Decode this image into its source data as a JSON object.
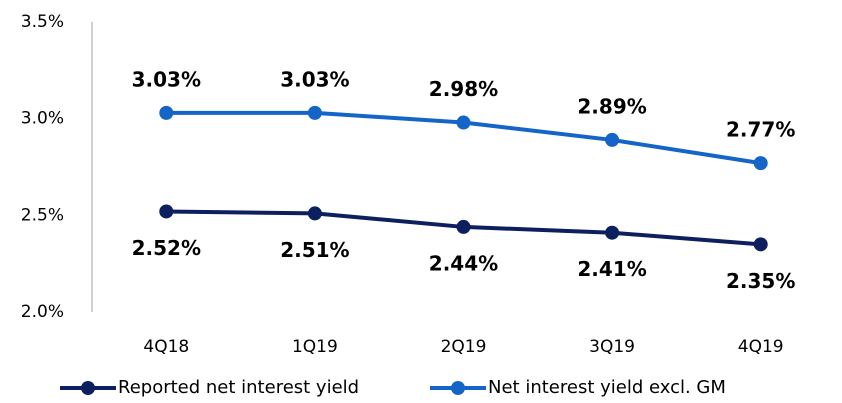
{
  "chart_data": {
    "type": "line",
    "categories": [
      "4Q18",
      "1Q19",
      "2Q19",
      "3Q19",
      "4Q19"
    ],
    "series": [
      {
        "name": "Reported net interest yield",
        "color": "#0c1f5e",
        "values": [
          2.52,
          2.51,
          2.44,
          2.41,
          2.35
        ],
        "value_labels": [
          "2.52%",
          "2.51%",
          "2.44%",
          "2.41%",
          "2.35%"
        ]
      },
      {
        "name": "Net interest yield excl. GM",
        "color": "#1565c8",
        "values": [
          3.03,
          3.03,
          2.98,
          2.89,
          2.77
        ],
        "value_labels": [
          "3.03%",
          "3.03%",
          "2.98%",
          "2.89%",
          "2.77%"
        ]
      }
    ],
    "ylim": [
      2.0,
      3.5
    ],
    "yticks": [
      {
        "value": 2.0,
        "label": "2.0%"
      },
      {
        "value": 2.5,
        "label": "2.5%"
      },
      {
        "value": 3.0,
        "label": "3.0%"
      },
      {
        "value": 3.5,
        "label": "3.5%"
      }
    ],
    "grid": false,
    "legend": "bottom"
  }
}
